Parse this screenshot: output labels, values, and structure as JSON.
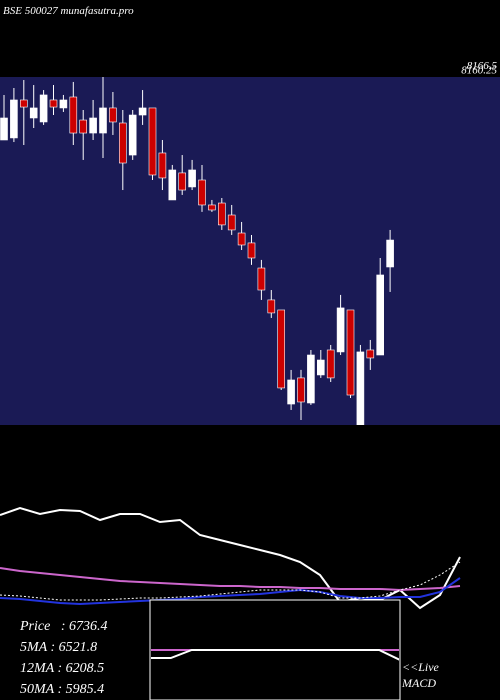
{
  "title": "BSE 500027 munafasutra.pro",
  "chart_data": [
    {
      "type": "candlestick",
      "background": "#1a1a55",
      "up_color": "#ffffff",
      "down_color": "#cc0000",
      "ylim": [
        5114,
        8166.5
      ],
      "yticks": [
        {
          "value": 8160.25,
          "label": "8160.25"
        },
        {
          "value": 8166.5,
          "label": "8166.5"
        }
      ],
      "open": [
        7614,
        7632,
        7965,
        7807,
        7772,
        7965,
        7895,
        7991,
        7789,
        7675,
        7675,
        7895,
        7763,
        7482,
        7833,
        7895,
        7500,
        7088,
        7325,
        7202,
        7263,
        7044,
        7061,
        6956,
        6798,
        6711,
        6491,
        6211,
        6123,
        5298,
        5527,
        5307,
        5553,
        5772,
        5755,
        6123,
        5114,
        5772,
        5728,
        6500
      ],
      "high": [
        8009,
        8070,
        8140,
        8096,
        8052,
        8096,
        8009,
        8123,
        7877,
        7965,
        8166,
        8035,
        7877,
        7877,
        8052,
        7895,
        7614,
        7395,
        7482,
        7439,
        7395,
        7088,
        7105,
        7044,
        6895,
        6781,
        6562,
        6298,
        6123,
        5597,
        5597,
        5772,
        5772,
        5816,
        6255,
        6123,
        5816,
        5860,
        6579,
        6825
      ],
      "low": [
        7614,
        7596,
        7570,
        7719,
        7746,
        7833,
        7860,
        7570,
        7439,
        7614,
        7456,
        7658,
        7175,
        7439,
        7746,
        7263,
        7175,
        7088,
        7132,
        7175,
        6983,
        6983,
        6825,
        6781,
        6649,
        6518,
        6211,
        6053,
        5421,
        5246,
        5158,
        5290,
        5527,
        5491,
        5728,
        5351,
        5070,
        5597,
        5728,
        6281
      ],
      "close": [
        7807,
        7965,
        7903,
        7895,
        8009,
        7903,
        7965,
        7675,
        7675,
        7807,
        7895,
        7772,
        7412,
        7833,
        7895,
        7307,
        7281,
        7351,
        7175,
        7351,
        7044,
        7000,
        6869,
        6825,
        6693,
        6579,
        6298,
        6097,
        5439,
        5509,
        5316,
        5728,
        5684,
        5527,
        6141,
        5377,
        5755,
        5702,
        6430,
        6736.4
      ]
    },
    {
      "type": "line",
      "xlim": [
        0,
        25
      ],
      "ylim": [
        0,
        200
      ],
      "x": [
        0,
        1,
        2,
        3,
        4,
        5,
        6,
        7,
        8,
        9,
        10,
        11,
        12,
        13,
        14,
        15,
        16,
        17,
        18,
        19,
        20,
        21,
        22,
        23
      ],
      "series": [
        {
          "color": "#ffffff",
          "dash": false,
          "values": [
            185,
            192,
            186,
            190,
            189,
            180,
            186,
            186,
            178,
            180,
            165,
            160,
            155,
            150,
            145,
            138,
            125,
            98,
            102,
            100,
            110,
            92,
            105,
            143
          ]
        },
        {
          "color": "#cc66cc",
          "dash": false,
          "values": [
            132,
            129,
            127,
            125,
            123,
            121,
            119,
            118,
            117,
            116,
            115,
            114,
            114,
            113,
            113,
            112,
            112,
            111,
            111,
            111,
            110,
            111,
            112,
            114
          ]
        },
        {
          "color": "#2233dd",
          "dash": false,
          "values": [
            102,
            101,
            99,
            97,
            96,
            97,
            98,
            99,
            100,
            101,
            103,
            104,
            105,
            106,
            108,
            110,
            108,
            104,
            102,
            102,
            103,
            103,
            108,
            122
          ]
        },
        {
          "color": "#ffffff",
          "dash": true,
          "values": [
            105,
            104,
            102,
            100,
            100,
            100,
            101,
            102,
            102,
            103,
            104,
            106,
            108,
            110,
            110,
            110,
            108,
            102,
            102,
            104,
            110,
            115,
            125,
            138
          ]
        }
      ],
      "stats": [
        "Price   : 6736.4",
        "5MA : 6521.8",
        "12MA : 6208.5",
        "50MA : 5985.4"
      ]
    },
    {
      "type": "macd",
      "xlim": [
        0,
        12
      ],
      "ylim": [
        0,
        100
      ],
      "x": [
        0,
        1,
        2,
        3,
        4,
        5,
        6,
        7,
        8,
        9,
        10,
        11,
        12
      ],
      "series": [
        {
          "color": "#cc66cc",
          "dash": false,
          "values": [
            50,
            50,
            50,
            50,
            50,
            50,
            50,
            50,
            50,
            50,
            50,
            50,
            50
          ]
        },
        {
          "color": "#ffffff",
          "dash": false,
          "values": [
            42,
            42,
            50,
            50,
            50,
            50,
            50,
            50,
            50,
            50,
            50,
            50,
            40
          ]
        }
      ],
      "annotation": [
        "<<Live",
        "MACD"
      ]
    }
  ]
}
